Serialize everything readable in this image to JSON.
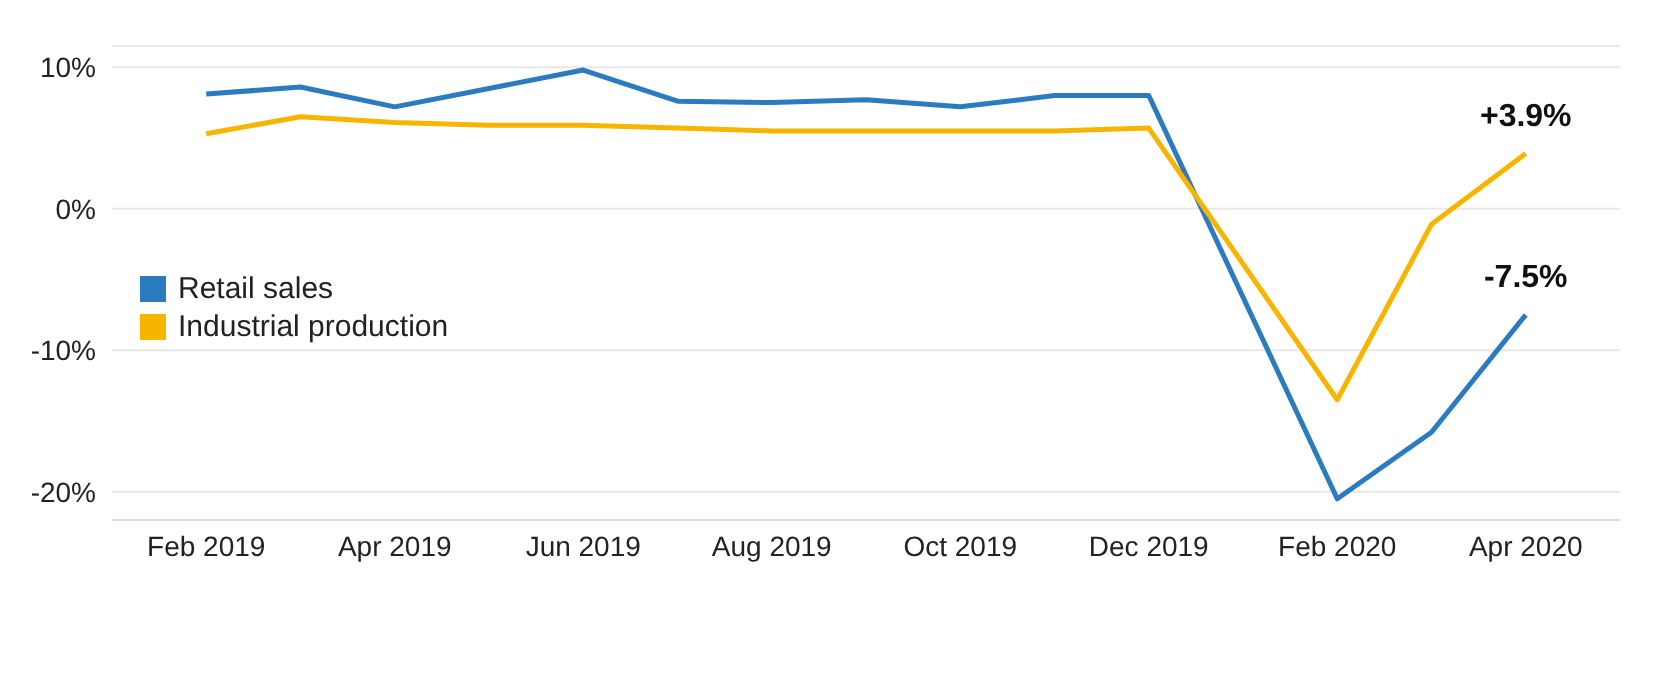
{
  "chart_data": {
    "type": "line",
    "x": [
      "2019-02",
      "2019-03",
      "2019-04",
      "2019-05",
      "2019-06",
      "2019-07",
      "2019-08",
      "2019-09",
      "2019-10",
      "2019-11",
      "2019-12",
      "2020-02",
      "2020-03",
      "2020-04"
    ],
    "series": [
      {
        "name": "Retail sales",
        "color": "#2a7bbf",
        "values": [
          8.1,
          8.6,
          7.2,
          8.5,
          9.8,
          7.6,
          7.5,
          7.7,
          7.2,
          8.0,
          8.0,
          -20.5,
          -15.8,
          -7.5
        ]
      },
      {
        "name": "Industrial production",
        "color": "#f7b500",
        "values": [
          5.3,
          6.5,
          6.1,
          5.9,
          5.9,
          5.7,
          5.5,
          5.5,
          5.5,
          5.5,
          5.7,
          -13.5,
          -1.1,
          3.9
        ]
      }
    ],
    "xlim": [
      "2019-01",
      "2020-05"
    ],
    "xticks": [
      {
        "value": "2019-02",
        "label": "Feb 2019"
      },
      {
        "value": "2019-04",
        "label": "Apr 2019"
      },
      {
        "value": "2019-06",
        "label": "Jun 2019"
      },
      {
        "value": "2019-08",
        "label": "Aug 2019"
      },
      {
        "value": "2019-10",
        "label": "Oct 2019"
      },
      {
        "value": "2019-12",
        "label": "Dec 2019"
      },
      {
        "value": "2020-02",
        "label": "Feb 2020"
      },
      {
        "value": "2020-04",
        "label": "Apr 2020"
      }
    ],
    "ylim": [
      -22,
      11.5
    ],
    "yticks": [
      {
        "value": -20,
        "label": "-20%"
      },
      {
        "value": -10,
        "label": "-10%"
      },
      {
        "value": 0,
        "label": "0%"
      },
      {
        "value": 10,
        "label": "10%"
      }
    ],
    "annotations": [
      {
        "text": "+3.9%",
        "x": "2020-04",
        "y": 3.9
      },
      {
        "text": "-7.5%",
        "x": "2020-04",
        "y": -7.5
      }
    ],
    "grid": "y",
    "legend": "left",
    "marker": "none",
    "line_style": "solid"
  }
}
